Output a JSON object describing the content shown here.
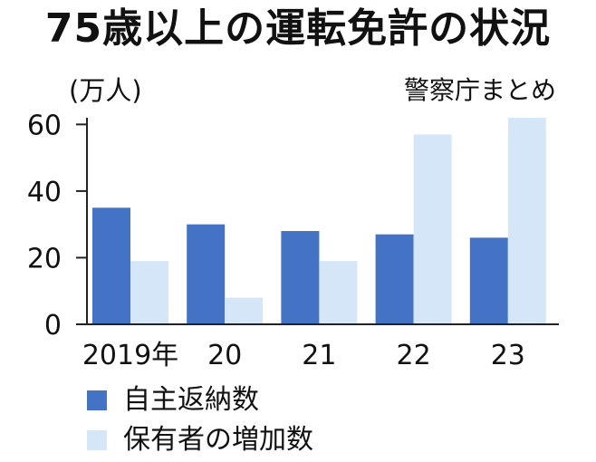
{
  "colors": {
    "series1": "#4472c4",
    "series2": "#d6e6f9",
    "axis": "#222222",
    "text": "#111111"
  },
  "chart_data": {
    "type": "bar",
    "title": "75歳以上の運転免許の状況",
    "unit_label": "(万人)",
    "source": "警察庁まとめ",
    "xlabel": "",
    "ylabel": "",
    "categories": [
      "2019年",
      "20",
      "21",
      "22",
      "23"
    ],
    "series": [
      {
        "name": "自主返納数",
        "values": [
          35,
          30,
          28,
          27,
          26
        ]
      },
      {
        "name": "保有者の増加数",
        "values": [
          19,
          8,
          19,
          57,
          62
        ]
      }
    ],
    "ylim": [
      0,
      62
    ],
    "yticks": [
      0,
      20,
      40,
      60
    ],
    "grid": false,
    "legend_position": "bottom-left"
  }
}
